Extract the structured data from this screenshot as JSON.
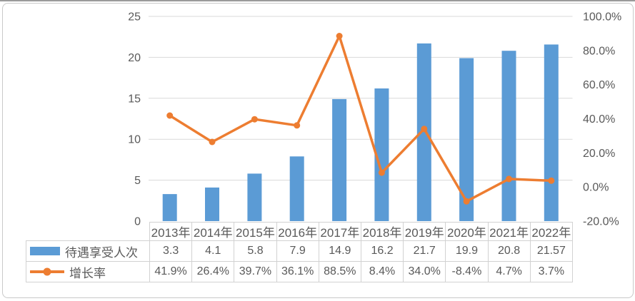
{
  "chart_data": {
    "type": "combo-bar-line",
    "title": "",
    "categories": [
      "2013年",
      "2014年",
      "2015年",
      "2016年",
      "2017年",
      "2018年",
      "2019年",
      "2020年",
      "2021年",
      "2022年"
    ],
    "series": [
      {
        "name": "待遇享受人次",
        "type": "bar",
        "axis": "left",
        "color": "#5B9BD5",
        "values": [
          3.3,
          4.1,
          5.8,
          7.9,
          14.9,
          16.2,
          21.7,
          19.9,
          20.8,
          21.57
        ],
        "labels": [
          "3.3",
          "4.1",
          "5.8",
          "7.9",
          "14.9",
          "16.2",
          "21.7",
          "19.9",
          "20.8",
          "21.57"
        ]
      },
      {
        "name": "增长率",
        "type": "line",
        "axis": "right",
        "color": "#ED7D31",
        "values": [
          41.9,
          26.4,
          39.7,
          36.1,
          88.5,
          8.4,
          34.0,
          -8.4,
          4.7,
          3.7
        ],
        "labels": [
          "41.9%",
          "26.4%",
          "39.7%",
          "36.1%",
          "88.5%",
          "8.4%",
          "34.0%",
          "-8.4%",
          "4.7%",
          "3.7%"
        ]
      }
    ],
    "left_axis": {
      "min": 0,
      "max": 25,
      "step": 5,
      "tick_labels": [
        "0",
        "5",
        "10",
        "15",
        "20",
        "25"
      ]
    },
    "right_axis": {
      "min": -20,
      "max": 100,
      "step": 20,
      "tick_labels": [
        "-20.0%",
        "0.0%",
        "20.0%",
        "40.0%",
        "60.0%",
        "80.0%",
        "100.0%"
      ]
    },
    "grid": true,
    "legend_position": "data-table-left",
    "colors": {
      "gridline": "#D9D9D9",
      "axis_label": "#595959",
      "table_border": "#D2D2D2",
      "table_text": "#595959",
      "card_border": "#C9C9C9",
      "top_edge": "#9A9A9A"
    }
  }
}
